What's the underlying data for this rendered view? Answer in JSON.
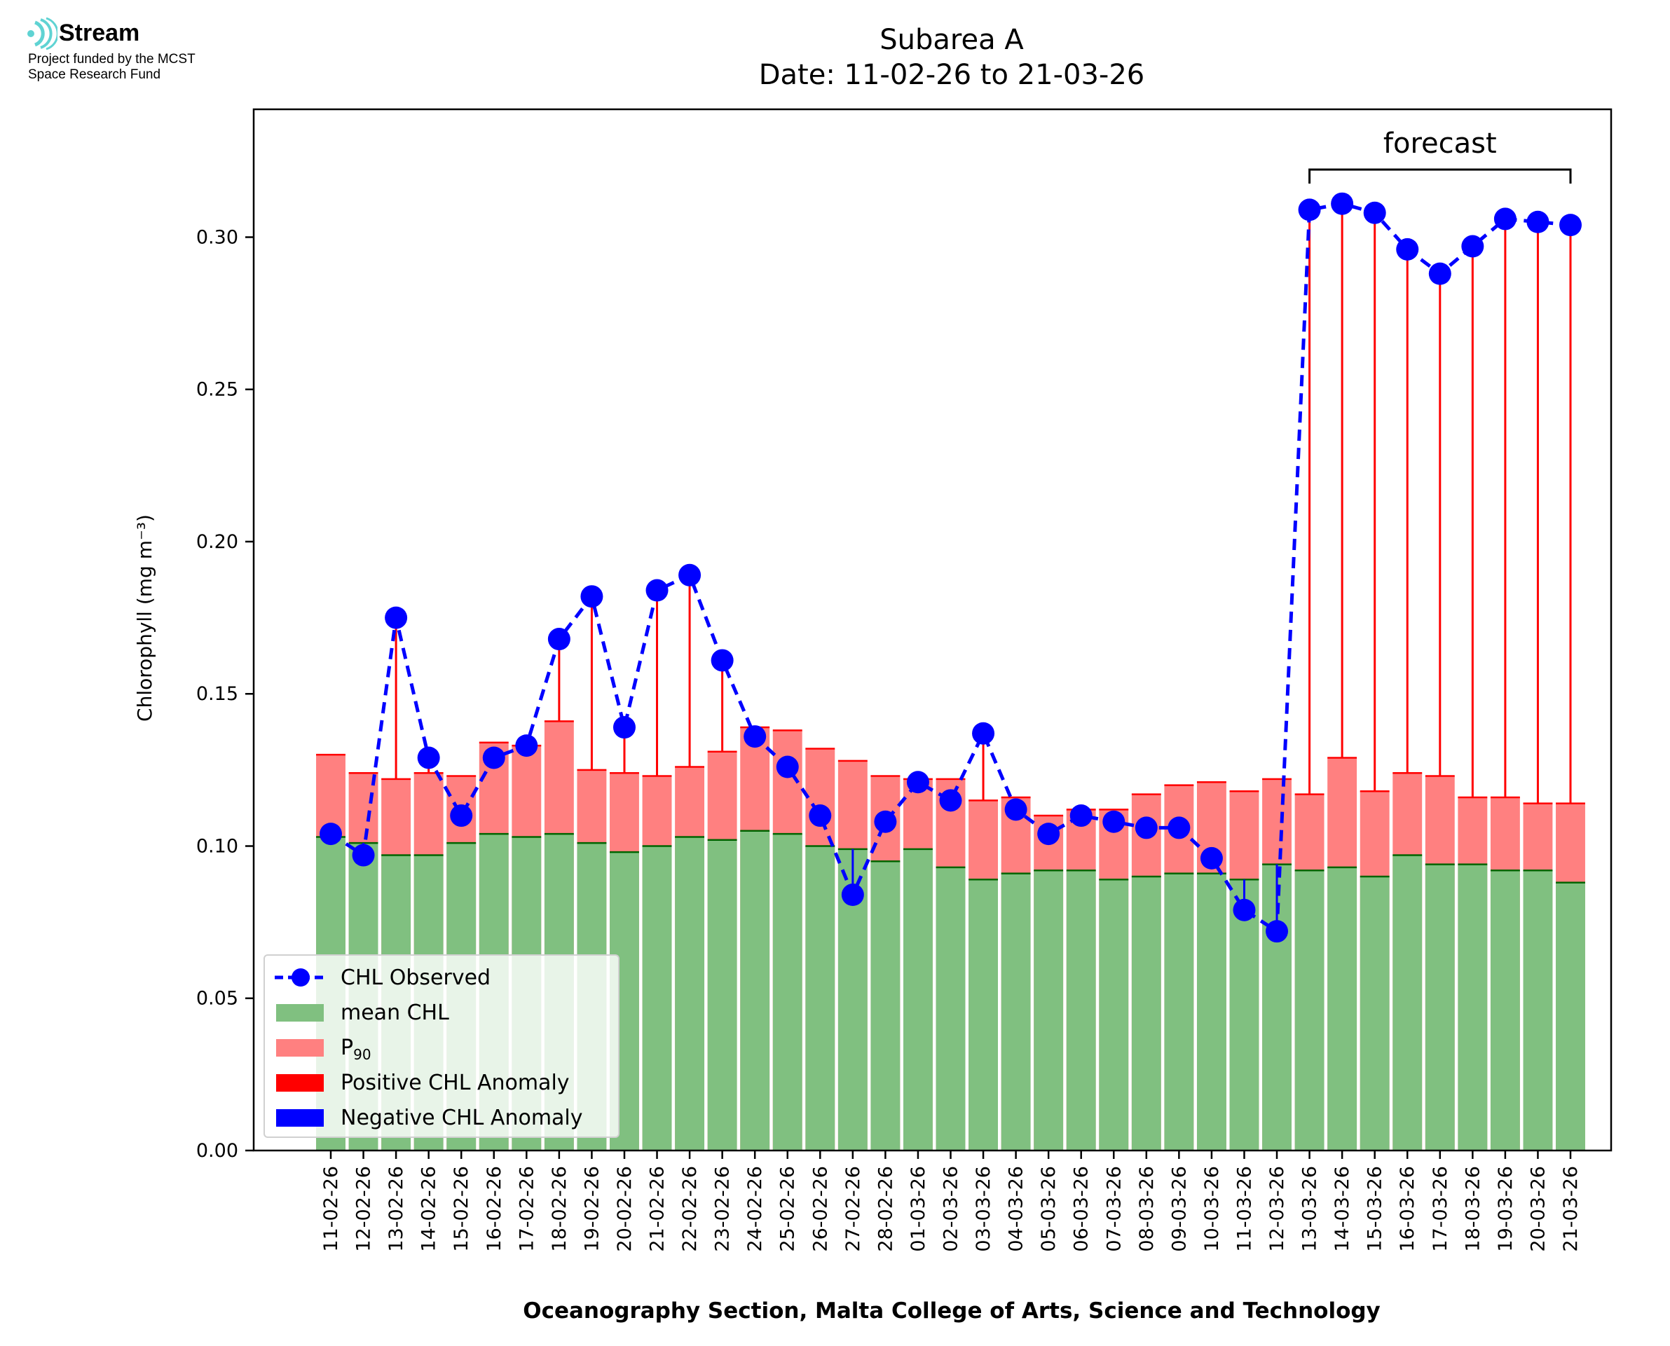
{
  "logo": {
    "brand": "Stream",
    "line1": "Project funded by the MCST",
    "line2": "Space Research Fund"
  },
  "chart_data": {
    "type": "bar",
    "title": "Subarea A",
    "subtitle": "Date: 11-02-26 to 21-03-26",
    "xlabel": "Oceanography Section, Malta College of Arts, Science and Technology",
    "ylabel": "Chlorophyll (mg m⁻³)",
    "ylim": [
      0,
      0.342
    ],
    "yticks": [
      "0.00",
      "0.05",
      "0.10",
      "0.15",
      "0.20",
      "0.25",
      "0.30"
    ],
    "ytick_values": [
      0,
      0.05,
      0.1,
      0.15,
      0.2,
      0.25,
      0.3
    ],
    "categories": [
      "11-02-26",
      "12-02-26",
      "13-02-26",
      "14-02-26",
      "15-02-26",
      "16-02-26",
      "17-02-26",
      "18-02-26",
      "19-02-26",
      "20-02-26",
      "21-02-26",
      "22-02-26",
      "23-02-26",
      "24-02-26",
      "25-02-26",
      "26-02-26",
      "27-02-26",
      "28-02-26",
      "01-03-26",
      "02-03-26",
      "03-03-26",
      "04-03-26",
      "05-03-26",
      "06-03-26",
      "07-03-26",
      "08-03-26",
      "09-03-26",
      "10-03-26",
      "11-03-26",
      "12-03-26",
      "13-03-26",
      "14-03-26",
      "15-03-26",
      "16-03-26",
      "17-03-26",
      "18-03-26",
      "19-03-26",
      "20-03-26",
      "21-03-26"
    ],
    "series": [
      {
        "name": "CHL Observed",
        "color": "#0000ff",
        "values": [
          0.104,
          0.097,
          0.175,
          0.129,
          0.11,
          0.129,
          0.133,
          0.168,
          0.182,
          0.139,
          0.184,
          0.189,
          0.161,
          0.136,
          0.126,
          0.11,
          0.084,
          0.108,
          0.121,
          0.115,
          0.137,
          0.112,
          0.104,
          0.11,
          0.108,
          0.106,
          0.106,
          0.096,
          0.079,
          0.072,
          0.309,
          0.311,
          0.308,
          0.296,
          0.288,
          0.297,
          0.306,
          0.305,
          0.304
        ]
      },
      {
        "name": "mean CHL",
        "color": "#008000",
        "values": [
          0.103,
          0.101,
          0.097,
          0.097,
          0.101,
          0.104,
          0.103,
          0.104,
          0.101,
          0.098,
          0.1,
          0.103,
          0.102,
          0.105,
          0.104,
          0.1,
          0.099,
          0.095,
          0.099,
          0.093,
          0.089,
          0.091,
          0.092,
          0.092,
          0.089,
          0.09,
          0.091,
          0.091,
          0.089,
          0.094,
          0.092,
          0.093,
          0.09,
          0.097,
          0.094,
          0.094,
          0.092,
          0.092,
          0.088
        ]
      },
      {
        "name": "P90",
        "color": "#ff0000",
        "values": [
          0.13,
          0.124,
          0.122,
          0.124,
          0.123,
          0.134,
          0.133,
          0.141,
          0.125,
          0.124,
          0.123,
          0.126,
          0.131,
          0.139,
          0.138,
          0.132,
          0.128,
          0.123,
          0.122,
          0.122,
          0.115,
          0.116,
          0.11,
          0.112,
          0.112,
          0.117,
          0.12,
          0.121,
          0.118,
          0.122,
          0.117,
          0.129,
          0.118,
          0.124,
          0.123,
          0.116,
          0.116,
          0.114,
          0.114
        ]
      }
    ],
    "anomaly_legend": [
      {
        "name": "Positive CHL Anomaly",
        "color": "#ff0000"
      },
      {
        "name": "Negative CHL Anomaly",
        "color": "#0000ff"
      }
    ],
    "annotation": {
      "text": "forecast",
      "from": "13-03-26",
      "to": "21-03-26"
    },
    "legend_position": "lower-left",
    "grid": false
  }
}
